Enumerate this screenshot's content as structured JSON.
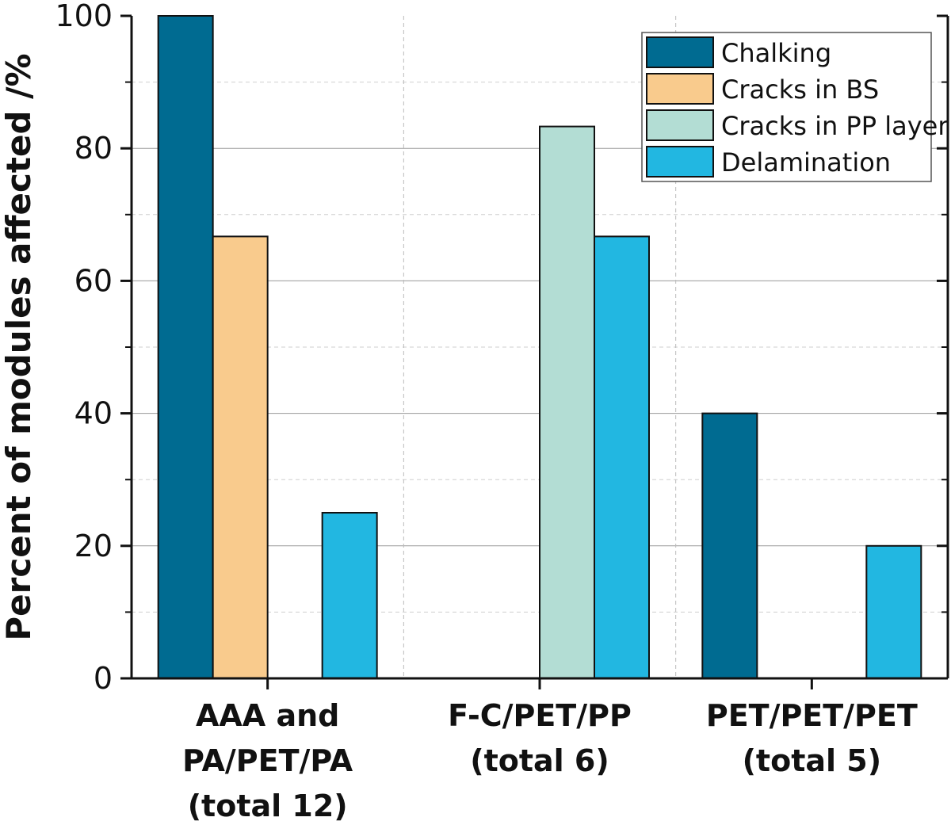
{
  "chart_data": {
    "type": "bar",
    "title": "",
    "xlabel": "",
    "ylabel": "Percent of modules affected /%",
    "ylim": [
      0,
      100
    ],
    "yticks": [
      0,
      20,
      40,
      60,
      80,
      100
    ],
    "grid": true,
    "legend_position": "top-right",
    "categories": [
      [
        "AAA and",
        "PA/PET/PA",
        "(total 12)"
      ],
      [
        "F-C/PET/PP",
        "(total 6)"
      ],
      [
        "PET/PET/PET",
        "(total 5)"
      ]
    ],
    "series": [
      {
        "name": "Chalking",
        "color": "#006b91",
        "values": [
          100,
          0,
          40
        ]
      },
      {
        "name": "Cracks in BS",
        "color": "#f9cb8d",
        "values": [
          66.7,
          0,
          0
        ]
      },
      {
        "name": "Cracks in PP layer",
        "color": "#b3ddd4",
        "values": [
          0,
          83.3,
          0
        ]
      },
      {
        "name": "Delamination",
        "color": "#22b7e1",
        "values": [
          25,
          66.7,
          20
        ]
      }
    ]
  }
}
